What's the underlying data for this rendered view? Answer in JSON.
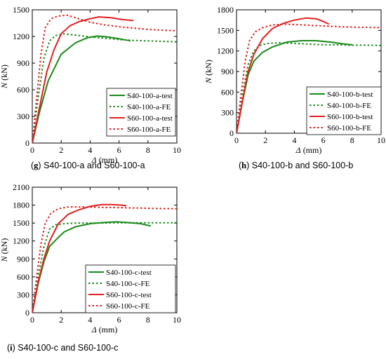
{
  "chart_data": [
    {
      "id": "g",
      "type": "line",
      "caption_letter": "g",
      "caption_text": " S40-100-a and S60-100-a",
      "xlabel_symbol": "Δ",
      "xlabel_unit": " (mm)",
      "ylabel_symbol": "N",
      "ylabel_unit": " (kN)",
      "xlim": [
        0,
        10
      ],
      "ylim": [
        0,
        1500
      ],
      "xticks": [
        0,
        2,
        4,
        6,
        8,
        10
      ],
      "yticks": [
        0,
        300,
        600,
        900,
        1200,
        1500
      ],
      "legend_position": "bottom-right",
      "series": [
        {
          "name": "S40-100-a-test",
          "color": "#1a8a1a",
          "dash": "solid",
          "x": [
            0,
            0.5,
            1.1,
            2.0,
            3.0,
            3.8,
            4.5,
            5.2,
            6.0,
            6.8
          ],
          "y": [
            0,
            350,
            700,
            1000,
            1130,
            1185,
            1205,
            1195,
            1175,
            1150
          ]
        },
        {
          "name": "S40-100-a-FE",
          "color": "#1a8a1a",
          "dash": "dotted",
          "x": [
            0,
            0.4,
            0.8,
            1.2,
            1.6,
            2.2,
            3.0,
            4.0,
            5.0,
            6.0,
            7.0,
            8.0,
            9.0,
            10.0
          ],
          "y": [
            0,
            500,
            950,
            1150,
            1210,
            1230,
            1215,
            1195,
            1180,
            1165,
            1155,
            1150,
            1145,
            1140
          ]
        },
        {
          "name": "S60-100-a-test",
          "color": "#e02020",
          "dash": "solid",
          "x": [
            0,
            0.5,
            1.0,
            1.5,
            2.0,
            2.6,
            3.2,
            4.0,
            4.6,
            5.5,
            6.2,
            7.0
          ],
          "y": [
            0,
            400,
            800,
            1050,
            1230,
            1320,
            1365,
            1400,
            1420,
            1410,
            1390,
            1380
          ]
        },
        {
          "name": "S60-100-a-FE",
          "color": "#e02020",
          "dash": "dotted",
          "x": [
            0,
            0.3,
            0.6,
            0.9,
            1.3,
            1.8,
            2.4,
            3.2,
            4.0,
            5.0,
            6.0,
            7.0,
            8.0,
            9.0,
            10.0
          ],
          "y": [
            0,
            500,
            1000,
            1300,
            1400,
            1430,
            1440,
            1400,
            1360,
            1330,
            1310,
            1295,
            1280,
            1270,
            1265
          ]
        }
      ]
    },
    {
      "id": "h",
      "type": "line",
      "caption_letter": "h",
      "caption_text": " S40-100-b and S60-100-b",
      "xlabel_symbol": "Δ",
      "xlabel_unit": " (mm)",
      "ylabel_symbol": "N",
      "ylabel_unit": " (kN)",
      "xlim": [
        0,
        10
      ],
      "ylim": [
        0,
        1800
      ],
      "xticks": [
        0,
        2,
        4,
        6,
        8,
        10
      ],
      "yticks": [
        0,
        300,
        600,
        900,
        1200,
        1500,
        1800
      ],
      "legend_position": "bottom-right",
      "series": [
        {
          "name": "S40-100-b-test",
          "color": "#1a8a1a",
          "dash": "solid",
          "x": [
            0,
            0.4,
            0.8,
            1.2,
            1.8,
            2.5,
            3.5,
            4.5,
            5.5,
            6.5,
            7.5,
            8.0
          ],
          "y": [
            0,
            450,
            850,
            1050,
            1180,
            1260,
            1330,
            1350,
            1350,
            1330,
            1300,
            1290
          ]
        },
        {
          "name": "S40-100-b-FE",
          "color": "#1a8a1a",
          "dash": "dotted",
          "x": [
            0,
            0.4,
            0.8,
            1.2,
            1.6,
            2.2,
            3.0,
            4.0,
            5.0,
            6.0,
            7.0,
            8.0,
            9.0,
            10.0
          ],
          "y": [
            0,
            550,
            1000,
            1200,
            1280,
            1310,
            1320,
            1310,
            1300,
            1290,
            1290,
            1285,
            1285,
            1280
          ]
        },
        {
          "name": "S60-100-b-test",
          "color": "#e02020",
          "dash": "solid",
          "x": [
            0,
            0.4,
            0.8,
            1.2,
            1.8,
            2.5,
            3.2,
            4.0,
            4.8,
            5.5,
            6.0,
            6.4
          ],
          "y": [
            0,
            450,
            900,
            1150,
            1380,
            1530,
            1600,
            1650,
            1680,
            1670,
            1630,
            1590
          ]
        },
        {
          "name": "S60-100-b-FE",
          "color": "#e02020",
          "dash": "dotted",
          "x": [
            0,
            0.3,
            0.6,
            0.9,
            1.3,
            1.8,
            2.5,
            3.5,
            4.5,
            5.5,
            6.5,
            7.5,
            8.5,
            10.0
          ],
          "y": [
            0,
            550,
            1050,
            1350,
            1480,
            1540,
            1580,
            1590,
            1580,
            1570,
            1560,
            1550,
            1545,
            1540
          ]
        }
      ]
    },
    {
      "id": "i",
      "type": "line",
      "caption_letter": "i",
      "caption_text": " S40-100-c and S60-100-c",
      "xlabel_symbol": "Δ",
      "xlabel_unit": " (mm)",
      "ylabel_symbol": "N",
      "ylabel_unit": " (kN)",
      "xlim": [
        0,
        10
      ],
      "ylim": [
        0,
        2100
      ],
      "xticks": [
        0,
        2,
        4,
        6,
        8,
        10
      ],
      "yticks": [
        0,
        300,
        600,
        900,
        1200,
        1500,
        1800,
        2100
      ],
      "legend_position": "bottom-right",
      "series": [
        {
          "name": "S40-100-c-test",
          "color": "#1a8a1a",
          "dash": "solid",
          "x": [
            0,
            0.4,
            0.8,
            1.2,
            1.8,
            2.2,
            3.0,
            4.0,
            5.0,
            5.8,
            6.5,
            7.5,
            8.2
          ],
          "y": [
            0,
            480,
            850,
            1110,
            1260,
            1350,
            1440,
            1490,
            1510,
            1520,
            1510,
            1490,
            1450
          ]
        },
        {
          "name": "S40-100-c-FE",
          "color": "#1a8a1a",
          "dash": "dotted",
          "x": [
            0,
            0.4,
            0.8,
            1.2,
            1.6,
            2.2,
            3.0,
            4.0,
            5.0,
            6.0,
            7.0,
            8.0,
            9.0,
            10.0
          ],
          "y": [
            0,
            600,
            1100,
            1400,
            1470,
            1490,
            1500,
            1500,
            1500,
            1505,
            1505,
            1505,
            1505,
            1505
          ]
        },
        {
          "name": "S60-100-c-test",
          "color": "#e02020",
          "dash": "solid",
          "x": [
            0,
            0.4,
            0.8,
            1.2,
            1.8,
            2.5,
            3.2,
            4.0,
            4.8,
            5.5,
            6.2,
            6.5
          ],
          "y": [
            0,
            500,
            900,
            1200,
            1490,
            1650,
            1720,
            1780,
            1810,
            1810,
            1800,
            1790
          ]
        },
        {
          "name": "S60-100-c-FE",
          "color": "#e02020",
          "dash": "dotted",
          "x": [
            0,
            0.3,
            0.6,
            0.9,
            1.3,
            1.8,
            2.5,
            3.5,
            4.5,
            5.5,
            6.5,
            7.5,
            8.5,
            10.0
          ],
          "y": [
            0,
            600,
            1150,
            1500,
            1670,
            1740,
            1770,
            1770,
            1765,
            1760,
            1755,
            1750,
            1745,
            1740
          ]
        }
      ]
    }
  ]
}
